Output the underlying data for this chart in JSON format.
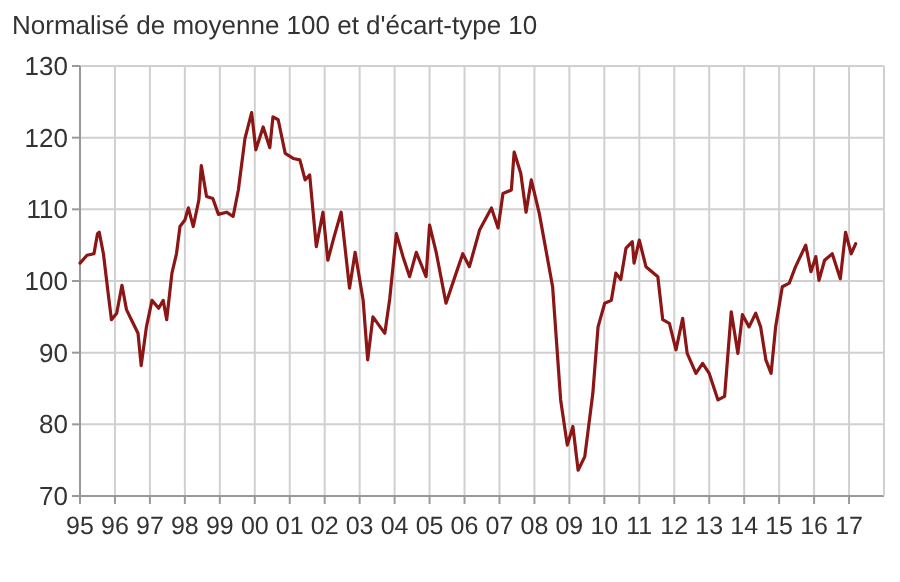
{
  "chart_data": {
    "type": "line",
    "title": "Normalisé de moyenne 100 et d'écart-type 10",
    "x": [
      1995.0,
      1995.2,
      1995.4,
      1995.5,
      1995.55,
      1995.67,
      1995.8,
      1995.9,
      1996.05,
      1996.2,
      1996.33,
      1996.47,
      1996.66,
      1996.75,
      1996.9,
      1997.06,
      1997.25,
      1997.38,
      1997.48,
      1997.63,
      1997.76,
      1997.86,
      1998.0,
      1998.1,
      1998.24,
      1998.4,
      1998.47,
      1998.62,
      1998.8,
      1998.96,
      1999.19,
      1999.38,
      1999.53,
      1999.72,
      1999.91,
      2000.03,
      2000.24,
      2000.43,
      2000.52,
      2000.67,
      2000.87,
      2001.1,
      2001.29,
      2001.44,
      2001.57,
      2001.76,
      2001.95,
      2002.09,
      2002.27,
      2002.47,
      2002.71,
      2002.87,
      2003.1,
      2003.23,
      2003.38,
      2003.72,
      2003.86,
      2004.05,
      2004.24,
      2004.43,
      2004.62,
      2004.9,
      2005.0,
      2005.19,
      2005.47,
      2005.76,
      2005.95,
      2006.14,
      2006.43,
      2006.77,
      2006.96,
      2007.1,
      2007.34,
      2007.42,
      2007.61,
      2007.76,
      2007.91,
      2008.14,
      2008.52,
      2008.75,
      2008.94,
      2009.1,
      2009.25,
      2009.44,
      2009.67,
      2009.82,
      2010.01,
      2010.2,
      2010.33,
      2010.47,
      2010.62,
      2010.8,
      2010.85,
      2011.0,
      2011.19,
      2011.53,
      2011.67,
      2011.86,
      2012.05,
      2012.24,
      2012.37,
      2012.62,
      2012.81,
      2013.0,
      2013.25,
      2013.44,
      2013.63,
      2013.82,
      2013.95,
      2014.14,
      2014.33,
      2014.47,
      2014.62,
      2014.77,
      2014.9,
      2015.09,
      2015.29,
      2015.47,
      2015.76,
      2015.91,
      2016.05,
      2016.14,
      2016.3,
      2016.52,
      2016.75,
      2016.9,
      2017.06,
      2017.19
    ],
    "series": [
      {
        "color": "#8c1515",
        "values": [
          102.5,
          103.6,
          103.8,
          106.6,
          106.8,
          103.8,
          98.5,
          94.6,
          95.5,
          99.4,
          96,
          94.6,
          92.7,
          88.2,
          93.6,
          97.3,
          96.2,
          97.3,
          94.6,
          101.1,
          103.8,
          107.6,
          108.5,
          110.2,
          107.6,
          111.3,
          116.1,
          111.8,
          111.5,
          109.3,
          109.6,
          109,
          112.7,
          119.9,
          123.5,
          118.3,
          121.5,
          118.6,
          122.9,
          122.5,
          117.8,
          117.1,
          116.9,
          114.1,
          114.8,
          104.8,
          109.6,
          102.9,
          106.2,
          109.6,
          99,
          104,
          97.3,
          89,
          95,
          92.7,
          97.5,
          106.6,
          103.4,
          100.6,
          104,
          100.6,
          107.8,
          104,
          96.9,
          101.1,
          103.8,
          102,
          107.1,
          110.2,
          107.4,
          112.2,
          112.7,
          118,
          115,
          109.6,
          114.1,
          109.4,
          99.2,
          83.4,
          77.1,
          79.7,
          73.6,
          75.5,
          84.3,
          93.6,
          96.9,
          97.3,
          101.1,
          100.2,
          104.6,
          105.5,
          102.5,
          105.7,
          102,
          100.6,
          94.6,
          94.1,
          90.4,
          94.8,
          89.9,
          87.1,
          88.5,
          87.1,
          83.4,
          83.9,
          95.7,
          89.9,
          95.3,
          93.6,
          95.5,
          93.6,
          89,
          87.1,
          93.6,
          99.2,
          99.7,
          102,
          105,
          101.3,
          103.4,
          100.1,
          102.9,
          103.8,
          100.3,
          106.8,
          103.8,
          105.2
        ]
      }
    ],
    "xlim": [
      1995,
      2018
    ],
    "xticks": [
      {
        "value": 1995,
        "label": "95"
      },
      {
        "value": 1996,
        "label": "96"
      },
      {
        "value": 1997,
        "label": "97"
      },
      {
        "value": 1998,
        "label": "98"
      },
      {
        "value": 1999,
        "label": "99"
      },
      {
        "value": 2000,
        "label": "00"
      },
      {
        "value": 2001,
        "label": "01"
      },
      {
        "value": 2002,
        "label": "02"
      },
      {
        "value": 2003,
        "label": "03"
      },
      {
        "value": 2004,
        "label": "04"
      },
      {
        "value": 2005,
        "label": "05"
      },
      {
        "value": 2006,
        "label": "06"
      },
      {
        "value": 2007,
        "label": "07"
      },
      {
        "value": 2008,
        "label": "08"
      },
      {
        "value": 2009,
        "label": "09"
      },
      {
        "value": 2010,
        "label": "10"
      },
      {
        "value": 2011,
        "label": "11"
      },
      {
        "value": 2012,
        "label": "12"
      },
      {
        "value": 2013,
        "label": "13"
      },
      {
        "value": 2014,
        "label": "14"
      },
      {
        "value": 2015,
        "label": "15"
      },
      {
        "value": 2016,
        "label": "16"
      },
      {
        "value": 2017,
        "label": "17"
      }
    ],
    "ylim": [
      70,
      130
    ],
    "yticks": [
      70,
      80,
      90,
      100,
      110,
      120,
      130
    ],
    "grid": true,
    "marker": "none",
    "line_style": "solid"
  }
}
